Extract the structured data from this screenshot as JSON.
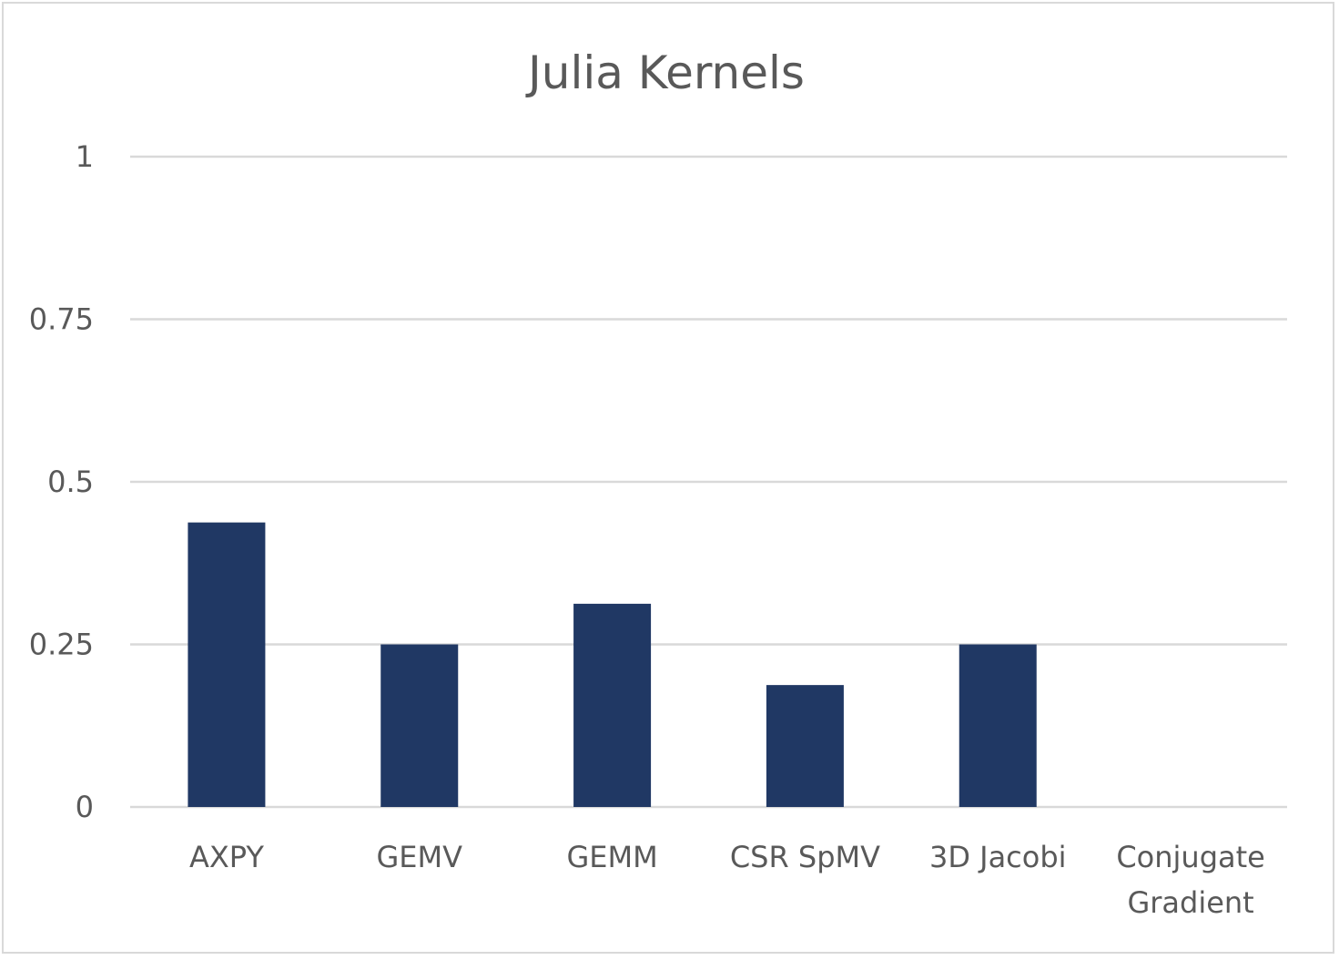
{
  "chart_data": {
    "type": "bar",
    "title": "Julia Kernels",
    "xlabel": "",
    "ylabel": "",
    "categories": [
      "AXPY",
      "GEMV",
      "GEMM",
      "CSR SpMV",
      "3D Jacobi",
      "Conjugate Gradient"
    ],
    "category_lines": [
      [
        "AXPY"
      ],
      [
        "GEMV"
      ],
      [
        "GEMM"
      ],
      [
        "CSR SpMV"
      ],
      [
        "3D Jacobi"
      ],
      [
        "Conjugate",
        "Gradient"
      ]
    ],
    "values": [
      0.4375,
      0.25,
      0.3125,
      0.1875,
      0.25,
      0
    ],
    "ylim": [
      0,
      1
    ],
    "yticks": [
      0,
      0.25,
      0.5,
      0.75,
      1
    ],
    "ytick_labels": [
      "0",
      "0.25",
      "0.5",
      "0.75",
      "1"
    ],
    "grid": true,
    "legend": "none",
    "bar_color": "#203864"
  }
}
